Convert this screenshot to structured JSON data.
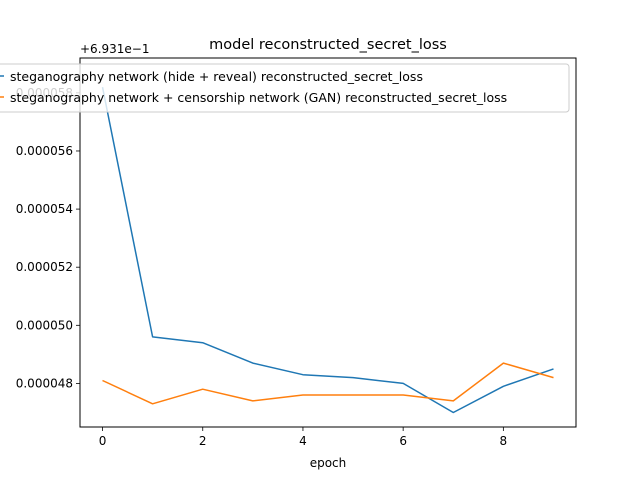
{
  "chart_data": {
    "type": "line",
    "title": "model reconstructed_secret_loss",
    "xlabel": "epoch",
    "ylabel": "",
    "offset_text": "+6.931e−1",
    "x": [
      0,
      1,
      2,
      3,
      4,
      5,
      6,
      7,
      8,
      9
    ],
    "xlim": [
      -0.45,
      9.45
    ],
    "ylim": [
      4.65e-05,
      5.92e-05
    ],
    "xticks": [
      0,
      2,
      4,
      6,
      8
    ],
    "xtick_labels": [
      "0",
      "2",
      "4",
      "6",
      "8"
    ],
    "yticks": [
      4.8e-05,
      5e-05,
      5.2e-05,
      5.4e-05,
      5.6e-05,
      5.8e-05
    ],
    "ytick_labels": [
      "0.000048",
      "0.000050",
      "0.000052",
      "0.000054",
      "0.000056",
      "0.000058"
    ],
    "grid": false,
    "legend_position": "top-left",
    "series": [
      {
        "name": "steganography network (hide + reveal) reconstructed_secret_loss",
        "color": "#1f77b4",
        "values": [
          5.82e-05,
          4.96e-05,
          4.94e-05,
          4.87e-05,
          4.83e-05,
          4.82e-05,
          4.8e-05,
          4.7e-05,
          4.79e-05,
          4.85e-05
        ]
      },
      {
        "name": "steganography network + censorship network (GAN) reconstructed_secret_loss",
        "color": "#ff7f0e",
        "values": [
          4.81e-05,
          4.73e-05,
          4.78e-05,
          4.74e-05,
          4.76e-05,
          4.76e-05,
          4.76e-05,
          4.74e-05,
          4.87e-05,
          4.82e-05
        ]
      }
    ]
  }
}
